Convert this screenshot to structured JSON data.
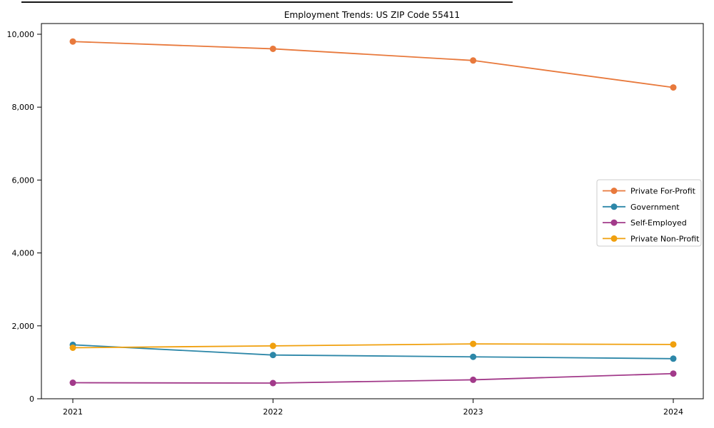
{
  "chart_data": {
    "type": "line",
    "title": "Employment Trends: US ZIP Code 55411",
    "categories": [
      "2021",
      "2022",
      "2023",
      "2024"
    ],
    "series": [
      {
        "name": "Private For-Profit",
        "color": "#e8793c",
        "values": [
          9800,
          9600,
          9280,
          8540
        ]
      },
      {
        "name": "Government",
        "color": "#2d87a8",
        "values": [
          1480,
          1200,
          1150,
          1100
        ]
      },
      {
        "name": "Self-Employed",
        "color": "#a23a8a",
        "values": [
          440,
          430,
          520,
          690
        ]
      },
      {
        "name": "Private Non-Profit",
        "color": "#f0a00e",
        "values": [
          1400,
          1450,
          1505,
          1490
        ]
      }
    ],
    "xlabel": "",
    "ylabel": "",
    "ylim": [
      0,
      10000
    ],
    "yticks": [
      0,
      2000,
      4000,
      6000,
      8000,
      10000
    ],
    "ytick_labels": [
      "0",
      "2,000",
      "4,000",
      "6,000",
      "8,000",
      "10,000"
    ],
    "grid": false,
    "legend_position": "right-middle",
    "legend_title": "",
    "marker": "circle",
    "axis_color": "#000000",
    "legend_border_color": "#cccccc",
    "background_color": "#ffffff"
  }
}
